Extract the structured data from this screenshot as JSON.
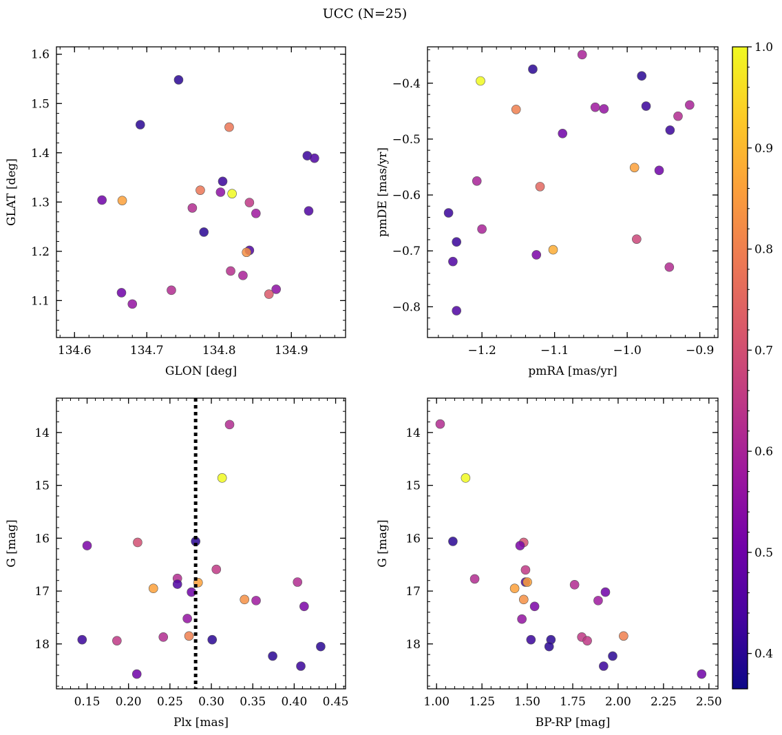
{
  "figure": {
    "title": "UCC (N=25)"
  },
  "colorbar": {
    "range": [
      0.365,
      1.0
    ],
    "ticks": [
      0.4,
      0.5,
      0.6,
      0.7,
      0.8,
      0.9,
      1.0
    ],
    "tick_labels": [
      "0.4",
      "0.5",
      "0.6",
      "0.7",
      "0.8",
      "0.9",
      "1.0"
    ],
    "colormap": "plasma",
    "stops": [
      "#0d0887",
      "#46039f",
      "#7201a8",
      "#9c179e",
      "#bd3786",
      "#d8576b",
      "#ed7953",
      "#fb9f3a",
      "#fdca26",
      "#f0f921"
    ]
  },
  "chart_data": [
    {
      "type": "scatter",
      "name": "glon-glat",
      "xlabel": "GLON [deg]",
      "ylabel": "GLAT [deg]",
      "xlim": [
        134.575,
        134.975
      ],
      "ylim": [
        1.025,
        1.615
      ],
      "y_inverted": false,
      "xticks": [
        134.6,
        134.7,
        134.8,
        134.9
      ],
      "xtick_labels": [
        "134.6",
        "134.7",
        "134.8",
        "134.9"
      ],
      "yticks": [
        1.1,
        1.2,
        1.3,
        1.4,
        1.5,
        1.6
      ],
      "ytick_labels": [
        "1.1",
        "1.2",
        "1.3",
        "1.4",
        "1.5",
        "1.6"
      ],
      "x_minor_step": 0.02,
      "y_minor_step": 0.02,
      "points": [
        {
          "x": 134.744,
          "y": 1.548,
          "c": 0.4
        },
        {
          "x": 134.691,
          "y": 1.457,
          "c": 0.4
        },
        {
          "x": 134.814,
          "y": 1.452,
          "c": 0.78
        },
        {
          "x": 134.922,
          "y": 1.394,
          "c": 0.42
        },
        {
          "x": 134.932,
          "y": 1.389,
          "c": 0.45
        },
        {
          "x": 134.805,
          "y": 1.342,
          "c": 0.42
        },
        {
          "x": 134.774,
          "y": 1.324,
          "c": 0.78
        },
        {
          "x": 134.818,
          "y": 1.317,
          "c": 1.0
        },
        {
          "x": 134.802,
          "y": 1.32,
          "c": 0.55
        },
        {
          "x": 134.638,
          "y": 1.304,
          "c": 0.5
        },
        {
          "x": 134.666,
          "y": 1.303,
          "c": 0.86
        },
        {
          "x": 134.842,
          "y": 1.299,
          "c": 0.65
        },
        {
          "x": 134.763,
          "y": 1.288,
          "c": 0.62
        },
        {
          "x": 134.924,
          "y": 1.282,
          "c": 0.45
        },
        {
          "x": 134.851,
          "y": 1.277,
          "c": 0.58
        },
        {
          "x": 134.779,
          "y": 1.239,
          "c": 0.4
        },
        {
          "x": 134.842,
          "y": 1.202,
          "c": 0.45
        },
        {
          "x": 134.838,
          "y": 1.198,
          "c": 0.83
        },
        {
          "x": 134.816,
          "y": 1.16,
          "c": 0.63
        },
        {
          "x": 134.833,
          "y": 1.151,
          "c": 0.6
        },
        {
          "x": 134.734,
          "y": 1.121,
          "c": 0.62
        },
        {
          "x": 134.879,
          "y": 1.123,
          "c": 0.55
        },
        {
          "x": 134.869,
          "y": 1.113,
          "c": 0.72
        },
        {
          "x": 134.665,
          "y": 1.116,
          "c": 0.5
        },
        {
          "x": 134.68,
          "y": 1.093,
          "c": 0.56
        }
      ]
    },
    {
      "type": "scatter",
      "name": "pmra-pmde",
      "xlabel": "pmRA [mas/yr]",
      "ylabel": "pmDE [mas/yr]",
      "xlim": [
        -1.275,
        -0.875
      ],
      "ylim": [
        -0.855,
        -0.335
      ],
      "y_inverted": false,
      "xticks": [
        -1.2,
        -1.1,
        -1.0,
        -0.9
      ],
      "xtick_labels": [
        "−1.2",
        "−1.1",
        "−1.0",
        "−0.9"
      ],
      "yticks": [
        -0.8,
        -0.7,
        -0.6,
        -0.5,
        -0.4
      ],
      "ytick_labels": [
        "−0.8",
        "−0.7",
        "−0.6",
        "−0.5",
        "−0.4"
      ],
      "x_minor_step": 0.02,
      "y_minor_step": 0.02,
      "points": [
        {
          "x": -1.062,
          "y": -0.349,
          "c": 0.6
        },
        {
          "x": -1.13,
          "y": -0.375,
          "c": 0.4
        },
        {
          "x": -0.98,
          "y": -0.387,
          "c": 0.4
        },
        {
          "x": -1.202,
          "y": -0.396,
          "c": 1.0
        },
        {
          "x": -0.974,
          "y": -0.441,
          "c": 0.42
        },
        {
          "x": -1.153,
          "y": -0.447,
          "c": 0.8
        },
        {
          "x": -1.044,
          "y": -0.443,
          "c": 0.58
        },
        {
          "x": -1.032,
          "y": -0.446,
          "c": 0.56
        },
        {
          "x": -0.93,
          "y": -0.459,
          "c": 0.62
        },
        {
          "x": -0.914,
          "y": -0.439,
          "c": 0.6
        },
        {
          "x": -0.941,
          "y": -0.484,
          "c": 0.42
        },
        {
          "x": -1.089,
          "y": -0.49,
          "c": 0.5
        },
        {
          "x": -0.99,
          "y": -0.551,
          "c": 0.86
        },
        {
          "x": -0.956,
          "y": -0.556,
          "c": 0.5
        },
        {
          "x": -1.207,
          "y": -0.575,
          "c": 0.6
        },
        {
          "x": -1.12,
          "y": -0.585,
          "c": 0.75
        },
        {
          "x": -1.246,
          "y": -0.632,
          "c": 0.42
        },
        {
          "x": -1.2,
          "y": -0.661,
          "c": 0.6
        },
        {
          "x": -0.987,
          "y": -0.679,
          "c": 0.68
        },
        {
          "x": -1.235,
          "y": -0.684,
          "c": 0.42
        },
        {
          "x": -1.24,
          "y": -0.719,
          "c": 0.45
        },
        {
          "x": -1.102,
          "y": -0.698,
          "c": 0.88
        },
        {
          "x": -1.125,
          "y": -0.707,
          "c": 0.52
        },
        {
          "x": -0.942,
          "y": -0.729,
          "c": 0.62
        },
        {
          "x": -1.235,
          "y": -0.807,
          "c": 0.45
        }
      ]
    },
    {
      "type": "scatter",
      "name": "plx-g",
      "xlabel": "Plx [mas]",
      "ylabel": "G [mag]",
      "xlim": [
        0.113,
        0.462
      ],
      "ylim": [
        13.35,
        18.85
      ],
      "y_inverted": true,
      "xticks": [
        0.15,
        0.2,
        0.25,
        0.3,
        0.35,
        0.4,
        0.45
      ],
      "xtick_labels": [
        "0.15",
        "0.20",
        "0.25",
        "0.30",
        "0.35",
        "0.40",
        "0.45"
      ],
      "yticks": [
        14,
        15,
        16,
        17,
        18
      ],
      "ytick_labels": [
        "14",
        "15",
        "16",
        "17",
        "18"
      ],
      "x_minor_step": 0.01,
      "y_minor_step": 0.2,
      "vline": 0.281,
      "points": [
        {
          "x": 0.322,
          "y": 13.85,
          "c": 0.62
        },
        {
          "x": 0.313,
          "y": 14.86,
          "c": 1.0
        },
        {
          "x": 0.211,
          "y": 16.08,
          "c": 0.7
        },
        {
          "x": 0.281,
          "y": 16.06,
          "c": 0.4
        },
        {
          "x": 0.15,
          "y": 16.14,
          "c": 0.52
        },
        {
          "x": 0.306,
          "y": 16.59,
          "c": 0.65
        },
        {
          "x": 0.259,
          "y": 16.76,
          "c": 0.62
        },
        {
          "x": 0.259,
          "y": 16.87,
          "c": 0.45
        },
        {
          "x": 0.284,
          "y": 16.84,
          "c": 0.86
        },
        {
          "x": 0.404,
          "y": 16.83,
          "c": 0.62
        },
        {
          "x": 0.23,
          "y": 16.95,
          "c": 0.86
        },
        {
          "x": 0.276,
          "y": 17.02,
          "c": 0.5
        },
        {
          "x": 0.34,
          "y": 17.16,
          "c": 0.83
        },
        {
          "x": 0.354,
          "y": 17.18,
          "c": 0.58
        },
        {
          "x": 0.412,
          "y": 17.29,
          "c": 0.52
        },
        {
          "x": 0.271,
          "y": 17.52,
          "c": 0.56
        },
        {
          "x": 0.144,
          "y": 17.92,
          "c": 0.42
        },
        {
          "x": 0.186,
          "y": 17.94,
          "c": 0.65
        },
        {
          "x": 0.242,
          "y": 17.87,
          "c": 0.62
        },
        {
          "x": 0.273,
          "y": 17.85,
          "c": 0.8
        },
        {
          "x": 0.301,
          "y": 17.92,
          "c": 0.4
        },
        {
          "x": 0.432,
          "y": 18.05,
          "c": 0.4
        },
        {
          "x": 0.374,
          "y": 18.23,
          "c": 0.4
        },
        {
          "x": 0.408,
          "y": 18.42,
          "c": 0.42
        },
        {
          "x": 0.21,
          "y": 18.57,
          "c": 0.5
        }
      ]
    },
    {
      "type": "scatter",
      "name": "bprp-g",
      "xlabel": "BP-RP [mag]",
      "ylabel": "G [mag]",
      "xlim": [
        0.95,
        2.55
      ],
      "ylim": [
        13.35,
        18.85
      ],
      "y_inverted": true,
      "xticks": [
        1.0,
        1.25,
        1.5,
        1.75,
        2.0,
        2.25,
        2.5
      ],
      "xtick_labels": [
        "1.00",
        "1.25",
        "1.50",
        "1.75",
        "2.00",
        "2.25",
        "2.50"
      ],
      "yticks": [
        14,
        15,
        16,
        17,
        18
      ],
      "ytick_labels": [
        "14",
        "15",
        "16",
        "17",
        "18"
      ],
      "x_minor_step": 0.05,
      "y_minor_step": 0.2,
      "points": [
        {
          "x": 1.02,
          "y": 13.84,
          "c": 0.62
        },
        {
          "x": 1.16,
          "y": 14.86,
          "c": 1.0
        },
        {
          "x": 1.09,
          "y": 16.06,
          "c": 0.4
        },
        {
          "x": 1.48,
          "y": 16.08,
          "c": 0.7
        },
        {
          "x": 1.46,
          "y": 16.14,
          "c": 0.52
        },
        {
          "x": 1.49,
          "y": 16.6,
          "c": 0.65
        },
        {
          "x": 1.21,
          "y": 16.77,
          "c": 0.62
        },
        {
          "x": 1.49,
          "y": 16.83,
          "c": 0.45
        },
        {
          "x": 1.5,
          "y": 16.83,
          "c": 0.86
        },
        {
          "x": 1.76,
          "y": 16.88,
          "c": 0.62
        },
        {
          "x": 1.43,
          "y": 16.95,
          "c": 0.86
        },
        {
          "x": 1.93,
          "y": 17.02,
          "c": 0.5
        },
        {
          "x": 1.48,
          "y": 17.16,
          "c": 0.83
        },
        {
          "x": 1.89,
          "y": 17.18,
          "c": 0.58
        },
        {
          "x": 1.54,
          "y": 17.29,
          "c": 0.52
        },
        {
          "x": 1.47,
          "y": 17.53,
          "c": 0.56
        },
        {
          "x": 1.8,
          "y": 17.87,
          "c": 0.65
        },
        {
          "x": 1.83,
          "y": 17.94,
          "c": 0.65
        },
        {
          "x": 2.03,
          "y": 17.85,
          "c": 0.8
        },
        {
          "x": 1.52,
          "y": 17.92,
          "c": 0.42
        },
        {
          "x": 1.63,
          "y": 17.92,
          "c": 0.4
        },
        {
          "x": 1.62,
          "y": 18.05,
          "c": 0.4
        },
        {
          "x": 1.97,
          "y": 18.23,
          "c": 0.4
        },
        {
          "x": 1.92,
          "y": 18.42,
          "c": 0.42
        },
        {
          "x": 2.46,
          "y": 18.57,
          "c": 0.5
        }
      ]
    }
  ]
}
